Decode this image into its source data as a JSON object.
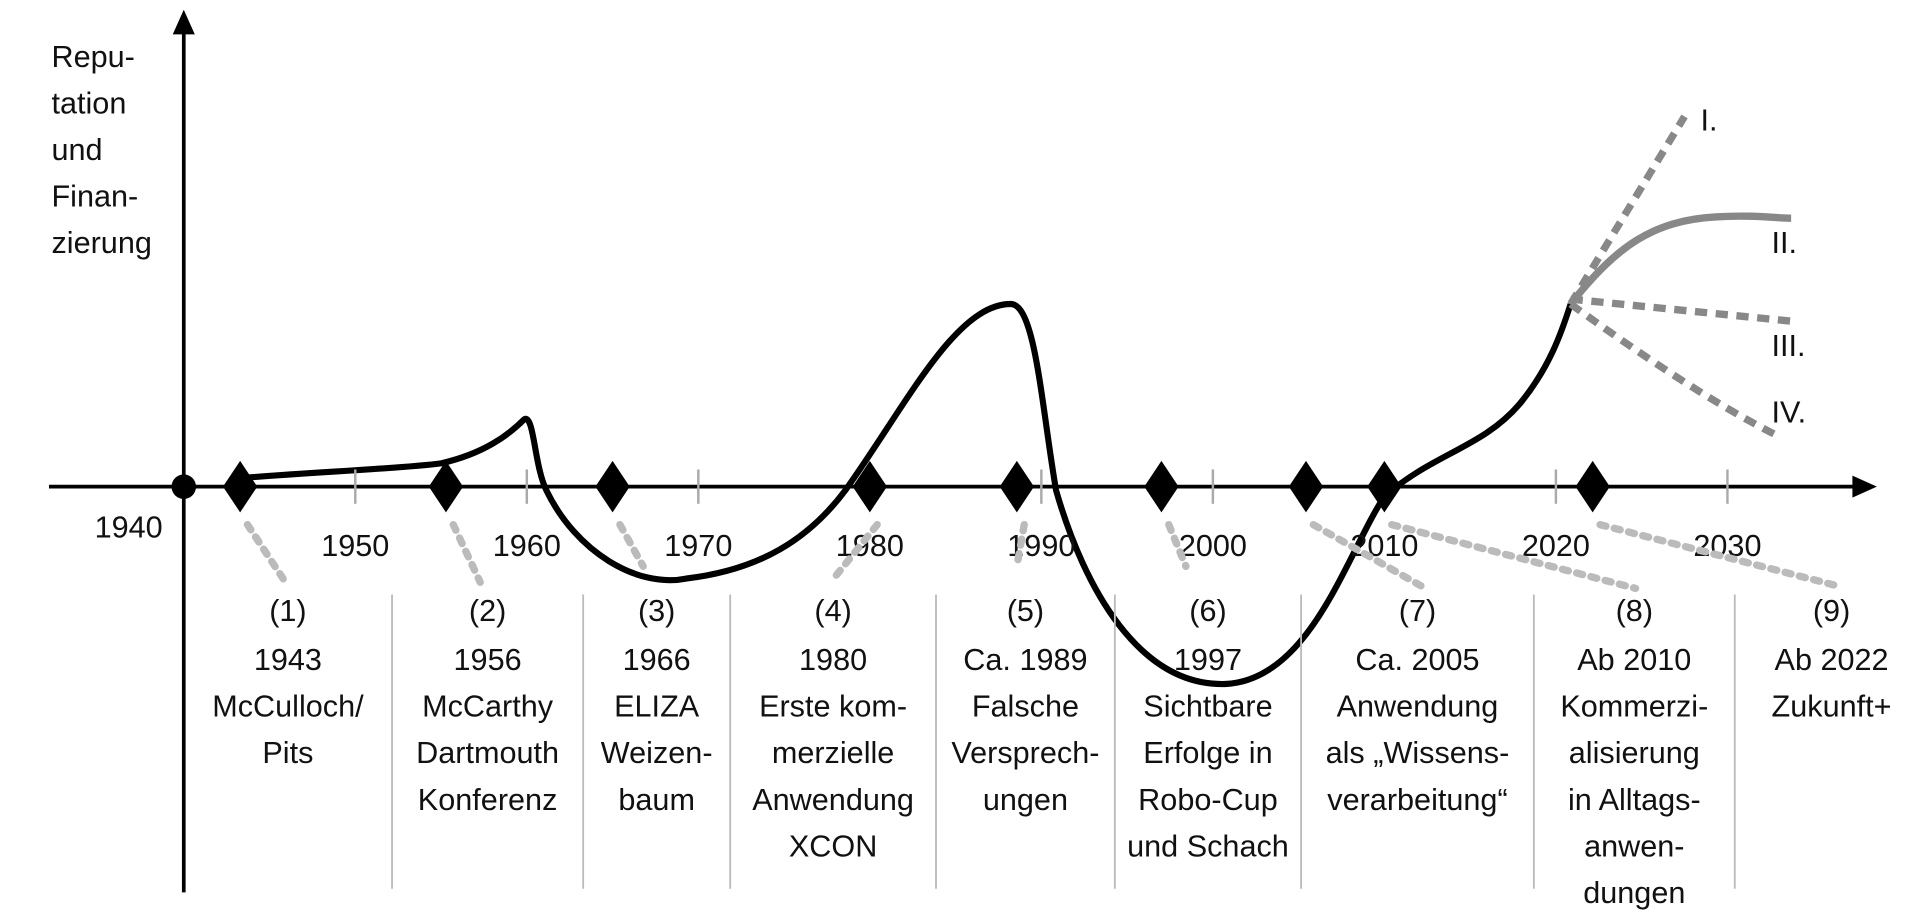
{
  "y_axis_label": [
    "Repu-",
    "tation",
    "und",
    "Finan-",
    "zierung"
  ],
  "origin_label": "1940",
  "x_ticks": [
    "1950",
    "1960",
    "1970",
    "1980",
    "1990",
    "2000",
    "2010",
    "2020",
    "2030"
  ],
  "events": [
    {
      "number": "(1)",
      "year": "1943",
      "lines": [
        "McCulloch/",
        "Pits"
      ]
    },
    {
      "number": "(2)",
      "year": "1956",
      "lines": [
        "McCarthy",
        "Dartmouth",
        "Konferenz"
      ]
    },
    {
      "number": "(3)",
      "year": "1966",
      "lines": [
        "ELIZA",
        "Weizen-",
        "baum"
      ]
    },
    {
      "number": "(4)",
      "year": "1980",
      "lines": [
        "Erste kom-",
        "merzielle",
        "Anwendung",
        "XCON"
      ]
    },
    {
      "number": "(5)",
      "year": "Ca. 1989",
      "lines": [
        "Falsche",
        "Versprech-",
        "ungen"
      ]
    },
    {
      "number": "(6)",
      "year": "1997",
      "lines": [
        "Sichtbare",
        "Erfolge in",
        "Robo-Cup",
        "und Schach"
      ]
    },
    {
      "number": "(7)",
      "year": "Ca. 2005",
      "lines": [
        "Anwendung",
        "als „Wissens-",
        "verarbeitung“"
      ]
    },
    {
      "number": "(8)",
      "year": "Ab 2010",
      "lines": [
        "Kommerzi-",
        "alisierung",
        "in Alltags-",
        "anwen-",
        "dungen"
      ]
    },
    {
      "number": "(9)",
      "year": "Ab 2022",
      "lines": [
        "Zukunft+"
      ]
    }
  ],
  "scenarios": [
    "I.",
    "II.",
    "III.",
    "IV."
  ]
}
